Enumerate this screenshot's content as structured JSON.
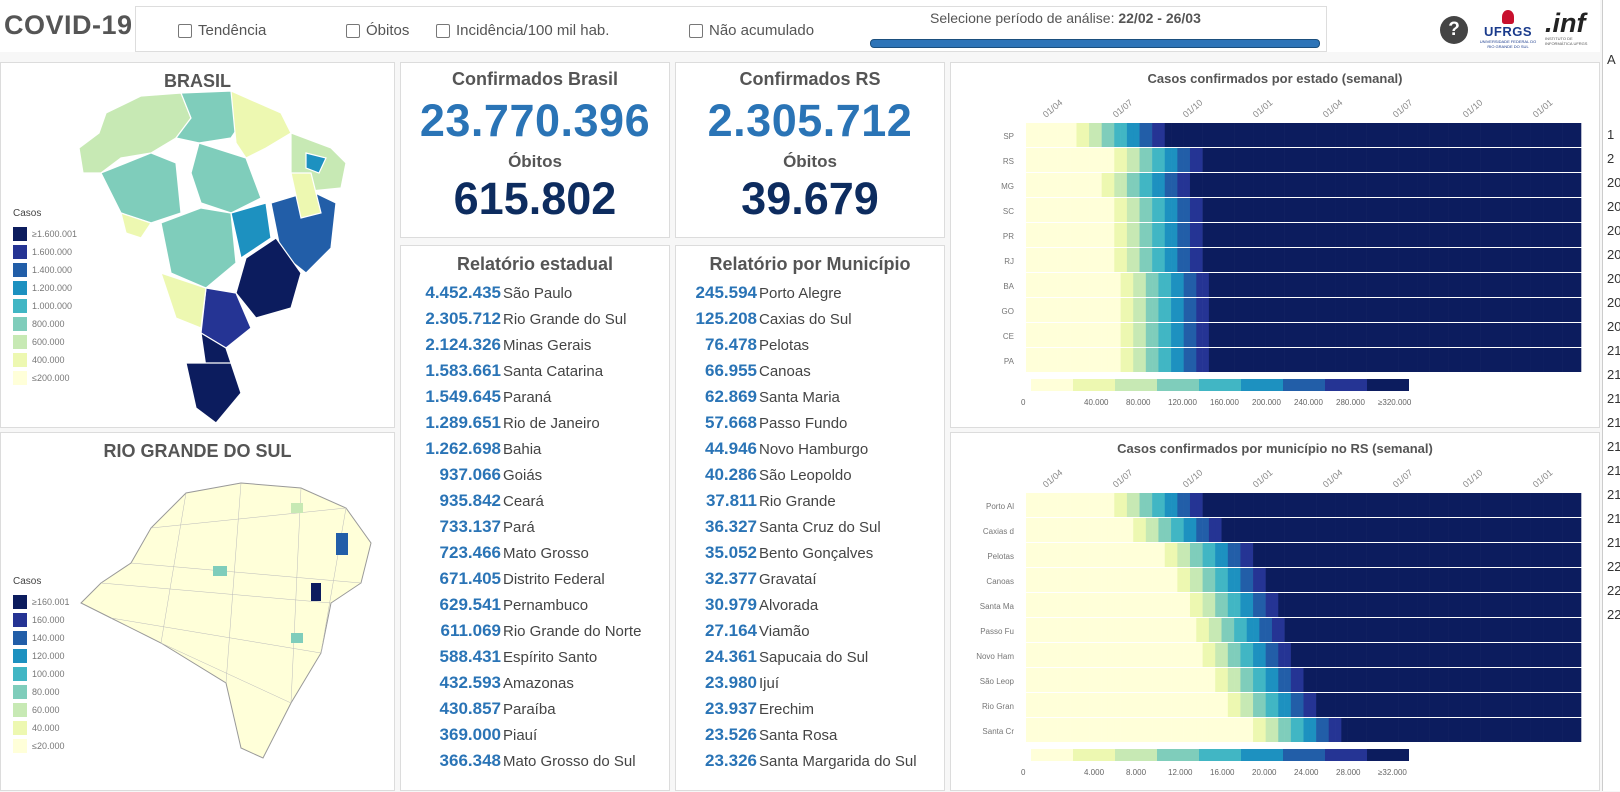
{
  "app": {
    "title": "COVID-19"
  },
  "filters": {
    "tendencia": "Tendência",
    "obitos": "Óbitos",
    "incidencia": "Incidência/100 mil hab.",
    "nao_acumulado": "Não acumulado",
    "period_label": "Selecione período de análise:",
    "period_value": "22/02 - 26/03"
  },
  "logos": {
    "ufrgs": "UFRGS",
    "ufrgs_sub": "UNIVERSIDADE FEDERAL DO RIO GRANDE DO SUL",
    "inf": ".inf",
    "inf_sub": "INSTITUTO DE INFORMÁTICA UFRGS"
  },
  "help": "?",
  "brasil_map": {
    "title": "BRASIL",
    "legend_title": "Casos",
    "legend": [
      "≥1.600.001",
      "1.600.000",
      "1.400.000",
      "1.200.000",
      "1.000.000",
      "800.000",
      "600.000",
      "400.000",
      "≤200.000"
    ]
  },
  "rs_map": {
    "title": "RIO GRANDE DO SUL",
    "legend_title": "Casos",
    "legend": [
      "≥160.001",
      "160.000",
      "140.000",
      "120.000",
      "100.000",
      "80.000",
      "60.000",
      "40.000",
      "≤20.000"
    ]
  },
  "legend_colors": [
    "#0c1c5e",
    "#253494",
    "#225ea8",
    "#1d91c0",
    "#41b6c4",
    "#7fcdbb",
    "#c7e9b4",
    "#edf8b1",
    "#ffffd9"
  ],
  "kpi_brasil": {
    "title": "Confirmados Brasil",
    "confirmados": "23.770.396",
    "obitos_label": "Óbitos",
    "obitos": "615.802"
  },
  "kpi_rs": {
    "title": "Confirmados RS",
    "confirmados": "2.305.712",
    "obitos_label": "Óbitos",
    "obitos": "39.679"
  },
  "relatorio_estadual": {
    "title": "Relatório estadual",
    "rows": [
      {
        "value": "4.452.435",
        "name": "São Paulo"
      },
      {
        "value": "2.305.712",
        "name": "Rio Grande do Sul"
      },
      {
        "value": "2.124.326",
        "name": "Minas Gerais"
      },
      {
        "value": "1.583.661",
        "name": "Santa Catarina"
      },
      {
        "value": "1.549.645",
        "name": "Paraná"
      },
      {
        "value": "1.289.651",
        "name": "Rio de Janeiro"
      },
      {
        "value": "1.262.698",
        "name": "Bahia"
      },
      {
        "value": "937.066",
        "name": "Goiás"
      },
      {
        "value": "935.842",
        "name": "Ceará"
      },
      {
        "value": "733.137",
        "name": "Pará"
      },
      {
        "value": "723.466",
        "name": "Mato Grosso"
      },
      {
        "value": "671.405",
        "name": "Distrito Federal"
      },
      {
        "value": "629.541",
        "name": "Pernambuco"
      },
      {
        "value": "611.069",
        "name": "Rio Grande do Norte"
      },
      {
        "value": "588.431",
        "name": "Espírito Santo"
      },
      {
        "value": "432.593",
        "name": "Amazonas"
      },
      {
        "value": "430.857",
        "name": "Paraíba"
      },
      {
        "value": "369.000",
        "name": "Piauí"
      },
      {
        "value": "366.348",
        "name": "Mato Grosso do Sul"
      }
    ]
  },
  "relatorio_municipio": {
    "title": "Relatório por Município",
    "rows": [
      {
        "value": "245.594",
        "name": "Porto Alegre"
      },
      {
        "value": "125.208",
        "name": "Caxias do Sul"
      },
      {
        "value": "76.478",
        "name": "Pelotas"
      },
      {
        "value": "66.955",
        "name": "Canoas"
      },
      {
        "value": "62.869",
        "name": "Santa Maria"
      },
      {
        "value": "57.668",
        "name": "Passo Fundo"
      },
      {
        "value": "44.946",
        "name": "Novo Hamburgo"
      },
      {
        "value": "40.286",
        "name": "São Leopoldo"
      },
      {
        "value": "37.811",
        "name": "Rio Grande"
      },
      {
        "value": "36.327",
        "name": "Santa Cruz do Sul"
      },
      {
        "value": "35.052",
        "name": "Bento Gonçalves"
      },
      {
        "value": "32.377",
        "name": "Gravataí"
      },
      {
        "value": "30.979",
        "name": "Alvorada"
      },
      {
        "value": "27.164",
        "name": "Viamão"
      },
      {
        "value": "24.361",
        "name": "Sapucaia do Sul"
      },
      {
        "value": "23.980",
        "name": "Ijuí"
      },
      {
        "value": "23.937",
        "name": "Erechim"
      },
      {
        "value": "23.526",
        "name": "Santa Rosa"
      },
      {
        "value": "23.326",
        "name": "Santa Margarida do Sul"
      }
    ]
  },
  "heatmap_estados": {
    "title": "Casos confirmados por estado (semanal)",
    "x_ticks": [
      "01/04",
      "01/07",
      "01/10",
      "01/01",
      "01/04",
      "01/07",
      "01/10",
      "01/01"
    ],
    "rows": [
      "SP",
      "RS",
      "MG",
      "SC",
      "PR",
      "RJ",
      "BA",
      "GO",
      "CE",
      "PA"
    ],
    "legend": [
      "0",
      "40.000",
      "80.000",
      "120.000",
      "160.000",
      "200.000",
      "240.000",
      "280.000",
      "≥320.000"
    ]
  },
  "heatmap_municipios": {
    "title": "Casos confirmados por município no RS (semanal)",
    "x_ticks": [
      "01/04",
      "01/07",
      "01/10",
      "01/01",
      "01/04",
      "01/07",
      "01/10",
      "01/01"
    ],
    "rows": [
      "Porto Al",
      "Caxias d",
      "Pelotas",
      "Canoas",
      "Santa Ma",
      "Passo Fu",
      "Novo Ham",
      "São Leop",
      "Rio Gran",
      "Santa Cr"
    ],
    "legend": [
      "0",
      "4.000",
      "8.000",
      "12.000",
      "16.000",
      "20.000",
      "24.000",
      "28.000",
      "≥32.000"
    ]
  },
  "right_partial": {
    "top": "A",
    "rows": [
      "1",
      "2",
      "20",
      "20",
      "20",
      "20",
      "20",
      "20",
      "20",
      "21",
      "21",
      "21",
      "21",
      "21",
      "21",
      "21",
      "21",
      "21",
      "22",
      "22",
      "22"
    ]
  }
}
